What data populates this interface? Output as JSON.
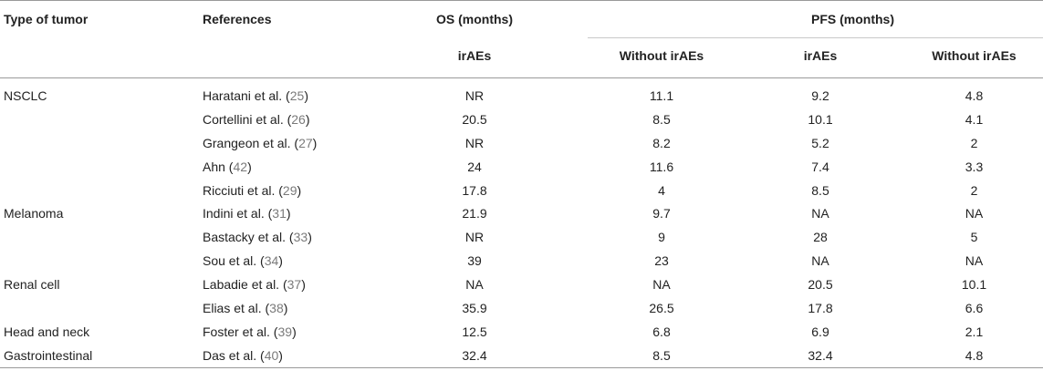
{
  "header": {
    "type_of_tumor": "Type of tumor",
    "references": "References",
    "os_group": "OS (months)",
    "pfs_group": "PFS (months)",
    "sub": [
      "irAEs",
      "Without irAEs",
      "irAEs",
      "Without irAEs"
    ]
  },
  "rows": [
    {
      "tumor": "NSCLC",
      "ref_author": "Haratani et al.",
      "ref_num": "25",
      "c1": "NR",
      "c2": "11.1",
      "c3": "9.2",
      "c4": "4.8"
    },
    {
      "tumor": "",
      "ref_author": "Cortellini et al.",
      "ref_num": "26",
      "c1": "20.5",
      "c2": "8.5",
      "c3": "10.1",
      "c4": "4.1"
    },
    {
      "tumor": "",
      "ref_author": "Grangeon et al.",
      "ref_num": "27",
      "c1": "NR",
      "c2": "8.2",
      "c3": "5.2",
      "c4": "2"
    },
    {
      "tumor": "",
      "ref_author": "Ahn",
      "ref_num": "42",
      "c1": "24",
      "c2": "11.6",
      "c3": "7.4",
      "c4": "3.3"
    },
    {
      "tumor": "",
      "ref_author": "Ricciuti et al.",
      "ref_num": "29",
      "c1": "17.8",
      "c2": "4",
      "c3": "8.5",
      "c4": "2"
    },
    {
      "tumor": "Melanoma",
      "ref_author": "Indini et al.",
      "ref_num": "31",
      "c1": "21.9",
      "c2": "9.7",
      "c3": "NA",
      "c4": "NA"
    },
    {
      "tumor": "",
      "ref_author": "Bastacky et al.",
      "ref_num": "33",
      "c1": "NR",
      "c2": "9",
      "c3": "28",
      "c4": "5"
    },
    {
      "tumor": "",
      "ref_author": "Sou et al.",
      "ref_num": "34",
      "c1": "39",
      "c2": "23",
      "c3": "NA",
      "c4": "NA"
    },
    {
      "tumor": "Renal cell",
      "ref_author": "Labadie et al.",
      "ref_num": "37",
      "c1": "NA",
      "c2": "NA",
      "c3": "20.5",
      "c4": "10.1"
    },
    {
      "tumor": "",
      "ref_author": "Elias et al.",
      "ref_num": "38",
      "c1": "35.9",
      "c2": "26.5",
      "c3": "17.8",
      "c4": "6.6"
    },
    {
      "tumor": "Head and neck",
      "ref_author": "Foster et al.",
      "ref_num": "39",
      "c1": "12.5",
      "c2": "6.8",
      "c3": "6.9",
      "c4": "2.1"
    },
    {
      "tumor": "Gastrointestinal",
      "ref_author": "Das et al.",
      "ref_num": "40",
      "c1": "32.4",
      "c2": "8.5",
      "c3": "32.4",
      "c4": "4.8"
    }
  ]
}
